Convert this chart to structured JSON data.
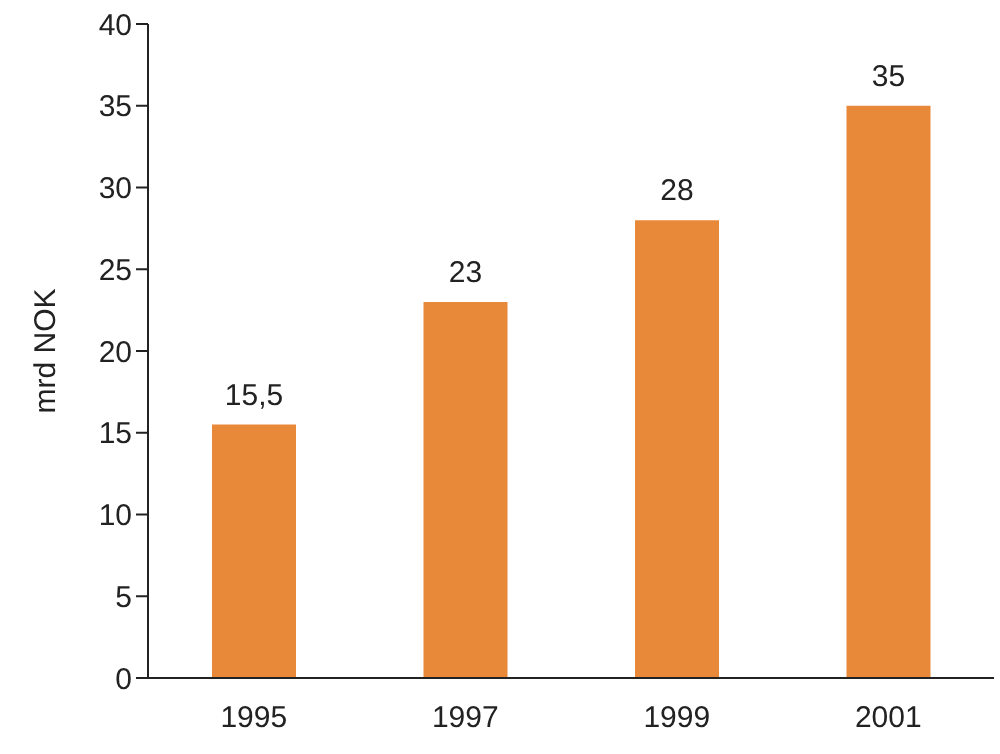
{
  "chart_data": {
    "type": "bar",
    "ylabel": "mrd NOK",
    "categories": [
      "1995",
      "1997",
      "1999",
      "2001"
    ],
    "values": [
      15.5,
      23,
      28,
      35
    ],
    "value_labels": [
      "15,5",
      "23",
      "28",
      "35"
    ],
    "color": "#e8893a",
    "ylim": [
      0,
      40
    ],
    "yticks": [
      0,
      5,
      10,
      15,
      20,
      25,
      30,
      35,
      40
    ],
    "grid": false,
    "legend": false
  }
}
